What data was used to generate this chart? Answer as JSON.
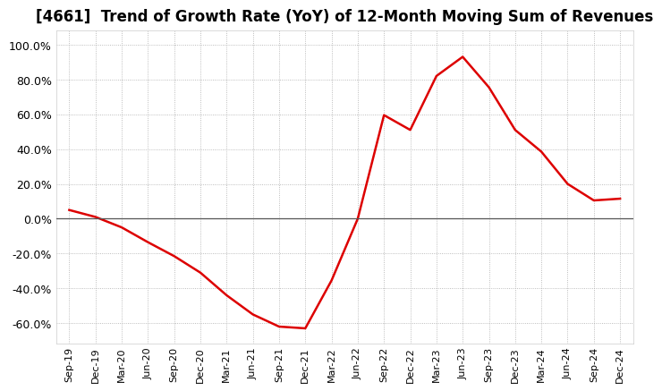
{
  "title": "[4661]  Trend of Growth Rate (YoY) of 12-Month Moving Sum of Revenues",
  "title_fontsize": 12,
  "line_color": "#dd0000",
  "background_color": "#ffffff",
  "plot_bg_color": "#ffffff",
  "grid_color": "#aaaaaa",
  "zero_line_color": "#555555",
  "ylim": [
    -0.72,
    1.08
  ],
  "yticks": [
    -0.6,
    -0.4,
    -0.2,
    0.0,
    0.2,
    0.4,
    0.6,
    0.8,
    1.0
  ],
  "xlabels": [
    "Sep-19",
    "Dec-19",
    "Mar-20",
    "Jun-20",
    "Sep-20",
    "Dec-20",
    "Mar-21",
    "Jun-21",
    "Sep-21",
    "Dec-21",
    "Mar-22",
    "Jun-22",
    "Sep-22",
    "Dec-22",
    "Mar-23",
    "Jun-23",
    "Sep-23",
    "Dec-23",
    "Mar-24",
    "Jun-24",
    "Sep-24",
    "Dec-24"
  ],
  "ydata": [
    0.05,
    0.01,
    -0.05,
    -0.135,
    -0.215,
    -0.31,
    -0.44,
    -0.55,
    -0.62,
    -0.63,
    -0.355,
    0.0,
    0.595,
    0.51,
    0.82,
    0.93,
    0.755,
    0.51,
    0.385,
    0.2,
    0.105,
    0.115
  ]
}
